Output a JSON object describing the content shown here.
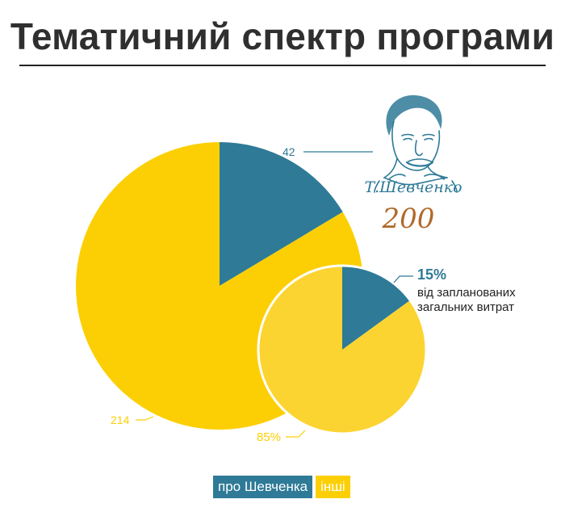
{
  "title": "Тематичний спектр програми",
  "colors": {
    "blue": "#2e7a97",
    "yellow": "#fccf04",
    "yellow_light": "#fcd431",
    "label": "#2e7a97"
  },
  "logo": {
    "text": "Т.Шевченко",
    "number": "200",
    "icon": "shevchenko-portrait-icon"
  },
  "chart_data": [
    {
      "type": "pie",
      "title": "",
      "categories": [
        "про Шевченка",
        "інші"
      ],
      "values": [
        42,
        214
      ],
      "labels": [
        "42",
        "214"
      ]
    },
    {
      "type": "pie",
      "title": "",
      "categories": [
        "про Шевченка",
        "інші"
      ],
      "values": [
        15,
        85
      ],
      "labels": [
        "15%",
        "85%"
      ],
      "annotation_line1": "від запланованих",
      "annotation_line2": "загальних витрат"
    }
  ],
  "legend": [
    {
      "label": "про Шевченка",
      "color": "#2e7a97"
    },
    {
      "label": "інші",
      "color": "#fccf04"
    }
  ]
}
